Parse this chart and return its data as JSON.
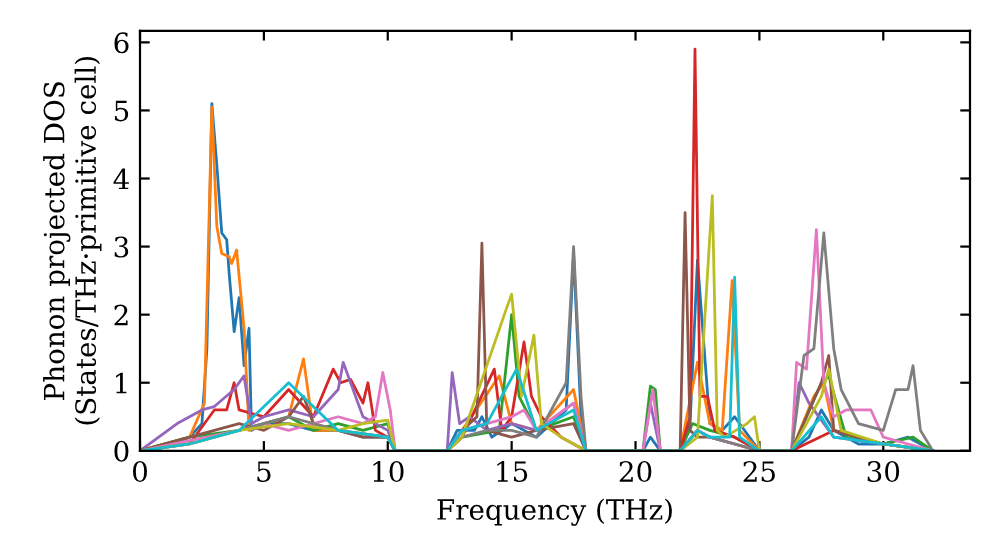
{
  "chart_data": {
    "type": "line",
    "xlabel": "Frequency (THz)",
    "ylabel": "Phonon projected DOS\n(States/THz·primitive cell)",
    "xlim": [
      0,
      33.5
    ],
    "ylim": [
      0,
      6.17
    ],
    "xticks": [
      0,
      5,
      10,
      15,
      20,
      25,
      30
    ],
    "yticks": [
      0,
      1,
      2,
      3,
      4,
      5,
      6
    ],
    "grid": false,
    "legend": false,
    "line_style": "solid",
    "marker": "none",
    "series": [
      {
        "color": "#1f77b4",
        "x": [
          0,
          1,
          2,
          2.5,
          2.7,
          2.9,
          3.1,
          3.3,
          3.5,
          3.6,
          3.8,
          4.0,
          4.2,
          4.4,
          4.5,
          5,
          6,
          7,
          8,
          9,
          10,
          10.3,
          12.4,
          12.8,
          13.5,
          13.8,
          14.2,
          15,
          15.5,
          16,
          17.2,
          17.5,
          17.8,
          18,
          20.3,
          20.6,
          21,
          21.8,
          22.2,
          22.5,
          23,
          23.5,
          24,
          25,
          26.3,
          27,
          27.5,
          28,
          29,
          30,
          31,
          32
        ],
        "values": [
          0,
          0.05,
          0.2,
          0.4,
          1.5,
          5.1,
          4.2,
          3.2,
          3.1,
          2.6,
          1.75,
          2.25,
          1.25,
          1.8,
          0.3,
          0.4,
          0.4,
          0.3,
          0.3,
          0.2,
          0.2,
          0,
          0,
          0.3,
          0.3,
          0.5,
          0.2,
          0.4,
          0.3,
          0.2,
          0.6,
          2.9,
          0.5,
          0,
          0,
          0.2,
          0,
          0,
          0.4,
          2.8,
          0.4,
          0.3,
          0.5,
          0,
          0,
          0.2,
          0.6,
          0.3,
          0.1,
          0.1,
          0.2,
          0
        ]
      },
      {
        "color": "#ff7f0e",
        "x": [
          0,
          2,
          2.6,
          2.9,
          3.1,
          3.3,
          3.6,
          3.7,
          3.9,
          4.2,
          4.4,
          5,
          6,
          6.6,
          7,
          8,
          10,
          10.3,
          12.4,
          13,
          14.5,
          15,
          16,
          17.5,
          18,
          20.3,
          21,
          21.8,
          22.5,
          23,
          23.5,
          23.9,
          24.2,
          25,
          26.3,
          27.2,
          27.6,
          28,
          30,
          32
        ],
        "values": [
          0,
          0.2,
          0.7,
          5.05,
          3.3,
          2.9,
          2.85,
          2.75,
          2.95,
          1.8,
          0.3,
          0.4,
          0.5,
          1.35,
          0.3,
          0.3,
          0.2,
          0,
          0,
          0.3,
          1.1,
          0.4,
          0.3,
          0.9,
          0,
          0,
          0,
          0,
          1.3,
          0.4,
          0.3,
          2.5,
          0.3,
          0,
          0,
          0.8,
          1.0,
          0.3,
          0.1,
          0
        ]
      },
      {
        "color": "#2ca02c",
        "x": [
          0,
          2,
          4,
          5,
          6,
          7,
          8,
          9,
          10,
          10.3,
          12.4,
          13,
          14.5,
          15,
          15.3,
          16,
          17.5,
          18,
          20.3,
          20.6,
          20.8,
          21,
          21.8,
          22.3,
          23,
          24,
          25,
          26.3,
          27.5,
          27.8,
          28.5,
          30,
          31.2,
          32
        ],
        "values": [
          0,
          0.2,
          0.3,
          0.4,
          0.5,
          0.3,
          0.4,
          0.3,
          0.4,
          0,
          0,
          0.2,
          0.3,
          2.0,
          0.8,
          0.3,
          0.5,
          0,
          0,
          0.95,
          0.9,
          0,
          0,
          0.4,
          0.3,
          0.2,
          0,
          0,
          1.0,
          1.1,
          0.2,
          0.1,
          0.2,
          0
        ]
      },
      {
        "color": "#d62728",
        "x": [
          0,
          2,
          3,
          3.5,
          3.8,
          4,
          5,
          6,
          7,
          7.8,
          8.1,
          8.5,
          9,
          9.2,
          9.5,
          10,
          10.3,
          12.4,
          13,
          14.3,
          14.6,
          15,
          15.5,
          15.8,
          16.2,
          17,
          18,
          20.3,
          21,
          21.8,
          22.2,
          22.4,
          22.6,
          22.9,
          23.2,
          24,
          25,
          26.3,
          28,
          30,
          32
        ],
        "values": [
          0,
          0.1,
          0.6,
          0.6,
          1.0,
          0.6,
          0.5,
          0.9,
          0.5,
          1.2,
          1.0,
          1.05,
          0.7,
          1.0,
          0.3,
          0.2,
          0,
          0,
          0.2,
          1.2,
          0.3,
          0.5,
          1.6,
          0.8,
          0.5,
          0.2,
          0,
          0,
          0,
          0,
          0.5,
          5.9,
          0.8,
          0.8,
          0.3,
          0.2,
          0,
          0,
          0.3,
          0.1,
          0
        ]
      },
      {
        "color": "#9467bd",
        "x": [
          0,
          1.5,
          2.5,
          3,
          3.8,
          4.2,
          4.5,
          5,
          6,
          7,
          8,
          8.2,
          9,
          10,
          10.3,
          12.4,
          12.6,
          12.9,
          13.3,
          14,
          15,
          16,
          17.5,
          18,
          20.3,
          20.6,
          21,
          21.8,
          22.5,
          23,
          24,
          25,
          26.3,
          26.6,
          27,
          28,
          30,
          32
        ],
        "values": [
          0,
          0.4,
          0.6,
          0.65,
          0.9,
          1.1,
          0.4,
          0.5,
          0.6,
          0.5,
          0.9,
          1.3,
          0.5,
          0.3,
          0,
          0,
          1.15,
          0.4,
          0.5,
          0.3,
          0.4,
          0.3,
          0.7,
          0,
          0,
          0.7,
          0,
          0,
          0.3,
          0.2,
          0.1,
          0,
          0,
          1.0,
          0.7,
          0.2,
          0.1,
          0
        ]
      },
      {
        "color": "#8c564b",
        "x": [
          0,
          2,
          4,
          5,
          6,
          6.6,
          7,
          8,
          9,
          10,
          10.3,
          12.4,
          13,
          13.6,
          13.8,
          14,
          15,
          16,
          17.5,
          18,
          20.3,
          21,
          21.8,
          22.0,
          22.2,
          22.5,
          23,
          24,
          25,
          26.3,
          27.5,
          27.8,
          28,
          30,
          32
        ],
        "values": [
          0,
          0.2,
          0.4,
          0.3,
          0.5,
          0.8,
          0.4,
          0.3,
          0.2,
          0.2,
          0,
          0,
          0.3,
          0.5,
          3.05,
          0.3,
          0.2,
          0.3,
          0.4,
          0,
          0,
          0,
          0,
          3.5,
          0.3,
          0.2,
          0.2,
          0.1,
          0,
          0,
          1.0,
          1.4,
          0.3,
          0.1,
          0
        ]
      },
      {
        "color": "#e377c2",
        "x": [
          0,
          2,
          4,
          5,
          6,
          7,
          8,
          9,
          9.5,
          9.8,
          10.1,
          10.3,
          12.4,
          13,
          14,
          15,
          15.5,
          16,
          17.5,
          18,
          20.3,
          20.7,
          21,
          21.8,
          22.5,
          23,
          25,
          26.3,
          26.5,
          26.9,
          27.3,
          27.6,
          28,
          28.5,
          29,
          29.5,
          30,
          31,
          32
        ],
        "values": [
          0,
          0.15,
          0.3,
          0.4,
          0.3,
          0.4,
          0.5,
          0.4,
          0.5,
          1.15,
          0.6,
          0,
          0,
          0.3,
          0.4,
          0.5,
          0.6,
          0.3,
          0.7,
          0,
          0,
          0.9,
          0,
          0,
          0.3,
          0.2,
          0,
          0,
          1.3,
          1.2,
          3.25,
          1.0,
          0.5,
          0.6,
          0.6,
          0.6,
          0.2,
          0.1,
          0
        ]
      },
      {
        "color": "#7f7f7f",
        "x": [
          0,
          2,
          4,
          6,
          8,
          10,
          10.3,
          12.4,
          13,
          14,
          15,
          16,
          17.2,
          17.5,
          17.8,
          18,
          20.3,
          21,
          21.8,
          22.5,
          23,
          24,
          25,
          26.3,
          26.8,
          27.2,
          27.6,
          28,
          28.3,
          29,
          30,
          30.5,
          31,
          31.2,
          31.5,
          32
        ],
        "values": [
          0,
          0.1,
          0.3,
          0.5,
          0.3,
          0.2,
          0,
          0,
          0.2,
          0.3,
          0.3,
          0.2,
          1.0,
          3.0,
          0.8,
          0,
          0,
          0,
          0,
          0.3,
          0.2,
          0.1,
          0,
          0,
          1.4,
          1.5,
          3.2,
          1.5,
          0.9,
          0.4,
          0.3,
          0.9,
          0.9,
          1.25,
          0.3,
          0
        ]
      },
      {
        "color": "#bcbd22",
        "x": [
          0,
          2,
          4,
          6,
          8,
          9,
          10,
          10.3,
          12.4,
          13,
          14.8,
          15.0,
          15.4,
          15.9,
          16.2,
          17,
          18,
          20.3,
          21,
          21.8,
          22.5,
          23.1,
          23.3,
          23.6,
          24.5,
          24.8,
          25,
          26.3,
          27.5,
          27.8,
          28.3,
          30,
          32
        ],
        "values": [
          0,
          0.1,
          0.3,
          0.4,
          0.3,
          0.4,
          0.45,
          0,
          0,
          0.2,
          2.1,
          2.3,
          0.8,
          1.7,
          0.4,
          0.2,
          0,
          0,
          0,
          0,
          0.2,
          3.75,
          0.3,
          0.2,
          0.4,
          0.5,
          0,
          0,
          0.8,
          1.2,
          0.3,
          0.1,
          0
        ]
      },
      {
        "color": "#17becf",
        "x": [
          0,
          2,
          4,
          6,
          8,
          10,
          10.3,
          12.4,
          13,
          14,
          15.2,
          16,
          17.5,
          18,
          20.3,
          21,
          21.8,
          22.5,
          23,
          23.8,
          24.0,
          24.2,
          25,
          26.3,
          27.5,
          28,
          30,
          32
        ],
        "values": [
          0,
          0.1,
          0.3,
          1.0,
          0.3,
          0.2,
          0,
          0,
          0.3,
          0.4,
          1.2,
          0.3,
          0.6,
          0,
          0,
          0,
          0,
          0.3,
          0.2,
          0.2,
          2.55,
          0.2,
          0,
          0,
          0.5,
          0.2,
          0.1,
          0
        ]
      }
    ]
  }
}
